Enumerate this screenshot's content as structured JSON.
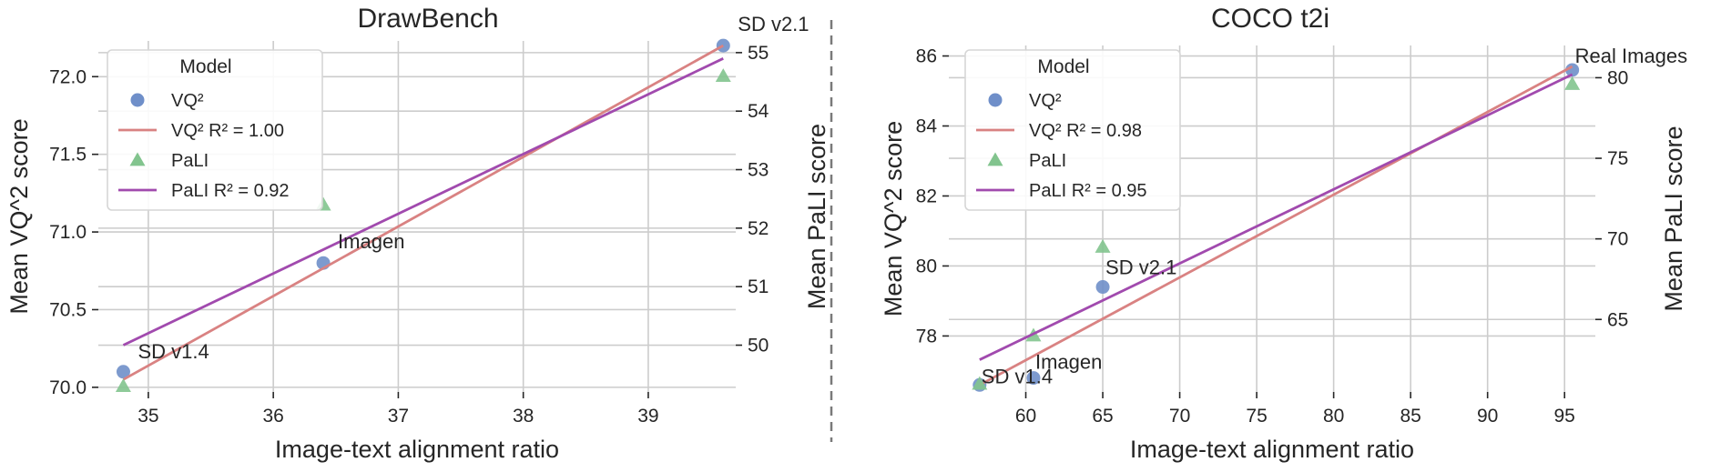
{
  "chart_data": [
    {
      "type": "scatter",
      "title": "DrawBench",
      "xlabel": "Image-text alignment ratio",
      "ylabel": "Mean VQ^2 score",
      "y2label": "Mean PaLI score",
      "xlim": [
        34.6,
        39.7
      ],
      "ylim": [
        69.97,
        72.23
      ],
      "y2lim": [
        49.2,
        55.2
      ],
      "xticks": [
        "35",
        "36",
        "37",
        "38",
        "39"
      ],
      "xtick_values": [
        35,
        36,
        37,
        38,
        39
      ],
      "yticks": [
        "70.0",
        "70.5",
        "71.0",
        "71.5",
        "72.0"
      ],
      "ytick_values": [
        70.0,
        70.5,
        71.0,
        71.5,
        72.0
      ],
      "y2ticks": [
        "50",
        "51",
        "52",
        "53",
        "54",
        "55"
      ],
      "y2tick_values": [
        50,
        51,
        52,
        53,
        54,
        55
      ],
      "grid": true,
      "legend": {
        "title": "Model",
        "position": "upper-left",
        "entries": [
          "VQ²",
          "VQ² R² = 1.00",
          "PaLI",
          "PaLI R² = 0.92"
        ]
      },
      "series": [
        {
          "name": "VQ²",
          "kind": "points",
          "axis": "left",
          "marker": "circle",
          "color": "#6f8fc9",
          "x": [
            34.8,
            36.4,
            39.6
          ],
          "y": [
            70.1,
            70.8,
            72.2
          ]
        },
        {
          "name": "VQ² R² = 1.00",
          "kind": "line",
          "axis": "left",
          "color": "#d98282",
          "x": [
            34.8,
            39.6
          ],
          "y": [
            70.05,
            72.2
          ]
        },
        {
          "name": "PaLI",
          "kind": "points",
          "axis": "right",
          "marker": "triangle",
          "color": "#82c48e",
          "x": [
            34.8,
            36.4,
            39.6
          ],
          "y": [
            49.3,
            52.4,
            54.6
          ]
        },
        {
          "name": "PaLI R² = 0.92",
          "kind": "line",
          "axis": "right",
          "color": "#a14aae",
          "x": [
            34.8,
            39.6
          ],
          "y": [
            50.0,
            54.9
          ]
        }
      ],
      "annotations": [
        {
          "text": "SD v1.4",
          "x": 34.8,
          "y": 70.1
        },
        {
          "text": "Imagen",
          "x": 36.4,
          "y": 70.8
        },
        {
          "text": "SD v2.1",
          "x": 39.6,
          "y": 72.2
        }
      ]
    },
    {
      "type": "scatter",
      "title": "COCO t2i",
      "xlabel": "Image-text alignment ratio",
      "ylabel": "Mean VQ^2 score",
      "y2label": "Mean PaLI score",
      "xlim": [
        55,
        97
      ],
      "ylim": [
        76.4,
        86.3
      ],
      "y2lim": [
        60.5,
        82.0
      ],
      "xticks": [
        "60",
        "65",
        "70",
        "75",
        "80",
        "85",
        "90",
        "95"
      ],
      "xtick_values": [
        60,
        65,
        70,
        75,
        80,
        85,
        90,
        95
      ],
      "yticks": [
        "78",
        "80",
        "82",
        "84",
        "86"
      ],
      "ytick_values": [
        78,
        80,
        82,
        84,
        86
      ],
      "y2ticks": [
        "65",
        "70",
        "75",
        "80"
      ],
      "y2tick_values": [
        65,
        70,
        75,
        80
      ],
      "grid": true,
      "legend": {
        "title": "Model",
        "position": "upper-left",
        "entries": [
          "VQ²",
          "VQ² R² = 0.98",
          "PaLI",
          "PaLI R² = 0.95"
        ]
      },
      "series": [
        {
          "name": "VQ²",
          "kind": "points",
          "axis": "left",
          "marker": "circle",
          "color": "#6f8fc9",
          "x": [
            57.0,
            60.5,
            65.0,
            95.5
          ],
          "y": [
            76.6,
            76.8,
            79.4,
            85.6
          ]
        },
        {
          "name": "VQ² R² = 0.98",
          "kind": "line",
          "axis": "left",
          "color": "#d98282",
          "x": [
            57.0,
            95.5
          ],
          "y": [
            76.6,
            85.7
          ]
        },
        {
          "name": "PaLI",
          "kind": "points",
          "axis": "right",
          "marker": "triangle",
          "color": "#82c48e",
          "x": [
            57.0,
            60.5,
            65.0,
            95.5
          ],
          "y": [
            61.0,
            64.0,
            69.5,
            79.6
          ]
        },
        {
          "name": "PaLI R² = 0.95",
          "kind": "line",
          "axis": "right",
          "color": "#a14aae",
          "x": [
            57.0,
            95.5
          ],
          "y": [
            62.5,
            80.2
          ]
        }
      ],
      "annotations": [
        {
          "text": "SD v1.4",
          "x": 57.0,
          "y": 76.6
        },
        {
          "text": "Imagen",
          "x": 60.5,
          "y": 76.8
        },
        {
          "text": "SD v2.1",
          "x": 65.0,
          "y": 79.4
        },
        {
          "text": "Real Images",
          "x": 95.5,
          "y": 85.6
        }
      ]
    }
  ]
}
